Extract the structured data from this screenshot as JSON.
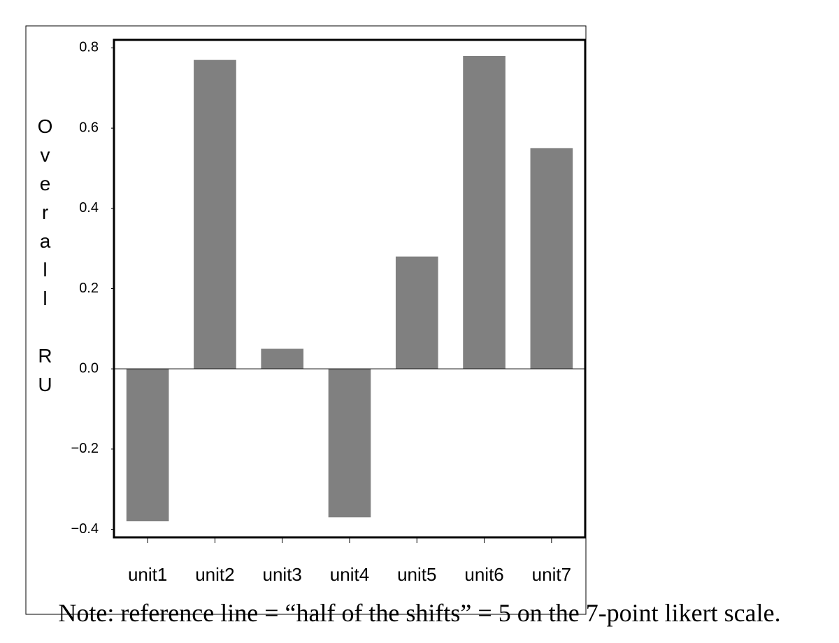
{
  "chart_data": {
    "type": "bar",
    "y_label": "Overall RU",
    "categories": [
      "unit1",
      "unit2",
      "unit3",
      "unit4",
      "unit5",
      "unit6",
      "unit7"
    ],
    "values": [
      -0.38,
      0.77,
      0.05,
      -0.37,
      0.28,
      0.78,
      0.55
    ],
    "color": "#808080",
    "ylim": [
      -0.42,
      0.82
    ],
    "yticks": [
      {
        "value": -0.4,
        "label": "−0.4"
      },
      {
        "value": -0.2,
        "label": "−0.2"
      },
      {
        "value": 0,
        "label": "0.0"
      },
      0.2,
      0.4,
      0.6,
      0.8
    ],
    "note": "Note: reference line = “half of the shifts” = 5 on the 7-point likert scale."
  }
}
